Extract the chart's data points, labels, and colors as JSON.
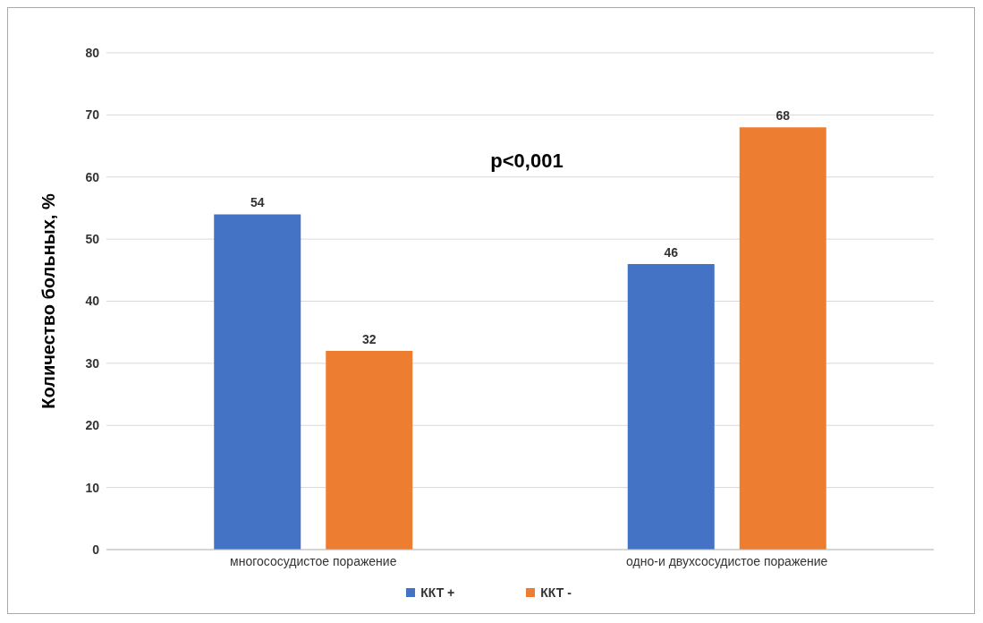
{
  "chart_data": {
    "type": "bar",
    "ylabel": "Количество больных, %",
    "categories": [
      "многососудистое поражение",
      "одно-и двухсосудистое поражение"
    ],
    "series": [
      {
        "name": "ККТ +",
        "color": "#4472c4",
        "values": [
          54,
          46
        ]
      },
      {
        "name": "ККТ -",
        "color": "#ed7d31",
        "values": [
          32,
          68
        ]
      }
    ],
    "ylim": [
      0,
      80
    ],
    "yticks": [
      0,
      10,
      20,
      30,
      40,
      50,
      60,
      70,
      80
    ],
    "grid": "y",
    "legend": "bottom",
    "data_labels": true,
    "annotations": [
      "p<0,001"
    ]
  }
}
